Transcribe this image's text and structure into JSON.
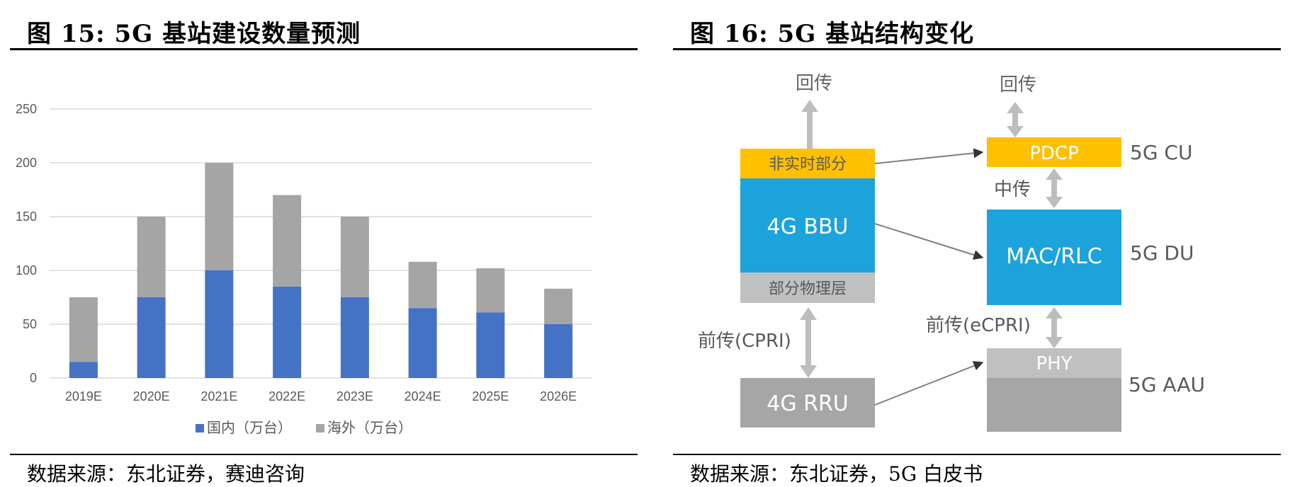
{
  "left_figure": {
    "title": "图 15: 5G 基站建设数量预测",
    "source": "数据来源：东北证券，赛迪咨询"
  },
  "right_figure": {
    "title": "图 16: 5G 基站结构变化",
    "source": "数据来源：东北证券，5G 白皮书"
  },
  "chart_data": [
    {
      "type": "bar",
      "stacked": true,
      "categories": [
        "2019E",
        "2020E",
        "2021E",
        "2022E",
        "2023E",
        "2024E",
        "2025E",
        "2026E"
      ],
      "series": [
        {
          "name": "国内（万台）",
          "values": [
            15,
            75,
            100,
            85,
            75,
            65,
            61,
            50
          ],
          "color": "#4472C4"
        },
        {
          "name": "海外（万台）",
          "values": [
            60,
            75,
            100,
            85,
            75,
            43,
            41,
            33
          ],
          "color": "#A5A5A5"
        }
      ],
      "ylim": [
        0,
        250
      ],
      "yticks": [
        0,
        50,
        100,
        150,
        200,
        250
      ],
      "grid": true,
      "legend_position": "bottom"
    }
  ],
  "diagram": {
    "left": {
      "top_label": "回传",
      "nonrealtime_label": "非实时部分",
      "bbu_label": "4G BBU",
      "partial_phy_label": "部分物理层",
      "fronthaul_label": "前传(CPRI)",
      "rru_label": "4G RRU"
    },
    "right": {
      "top_label": "回传",
      "pdcp_label": "PDCP",
      "cu_label": "5G CU",
      "midhaul_label": "中传",
      "mac_label": "MAC/RLC",
      "du_label": "5G DU",
      "fronthaul_label": "前传(eCPRI)",
      "phy_label": "PHY",
      "aau_label": "5G AAU"
    },
    "colors": {
      "yellow": "#FFC000",
      "blue": "#1CA3DC",
      "light_gray": "#C0C0C0",
      "dark_gray": "#A6A6A6",
      "arrow_gray": "#BDBDBD",
      "connector": "#7F7F7F"
    }
  }
}
